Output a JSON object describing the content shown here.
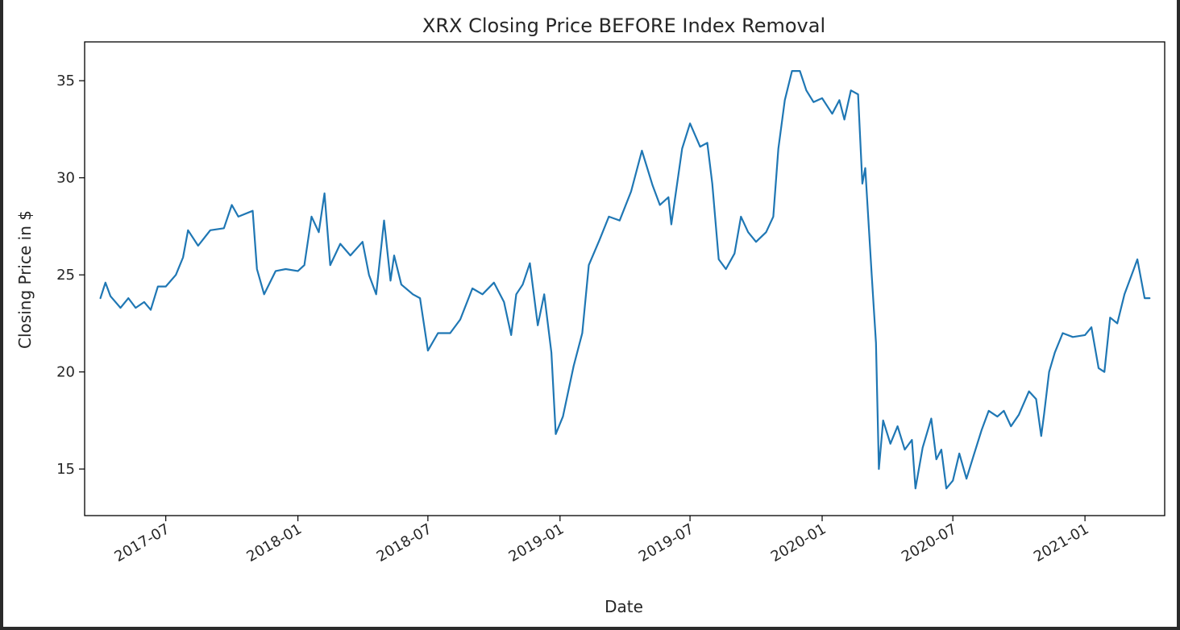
{
  "chart_data": {
    "type": "line",
    "title": "XRX Closing Price BEFORE Index Removal",
    "xlabel": "Date",
    "ylabel": "Closing Price in $",
    "xlim": [
      "2017-03-10",
      "2021-04-22"
    ],
    "ylim": [
      12.6,
      37.0
    ],
    "yticks": [
      15,
      20,
      25,
      30,
      35
    ],
    "xticks": [
      {
        "date": "2017-07-01",
        "label": "2017-07"
      },
      {
        "date": "2018-01-01",
        "label": "2018-01"
      },
      {
        "date": "2018-07-01",
        "label": "2018-07"
      },
      {
        "date": "2019-01-01",
        "label": "2019-01"
      },
      {
        "date": "2019-07-01",
        "label": "2019-07"
      },
      {
        "date": "2020-01-01",
        "label": "2020-01"
      },
      {
        "date": "2020-07-01",
        "label": "2020-07"
      },
      {
        "date": "2021-01-01",
        "label": "2021-01"
      }
    ],
    "grid": false,
    "color": "#1f77b4",
    "series": [
      {
        "name": "",
        "points": [
          [
            "2017-04-01",
            23.8
          ],
          [
            "2017-04-08",
            24.6
          ],
          [
            "2017-04-15",
            23.9
          ],
          [
            "2017-04-29",
            23.3
          ],
          [
            "2017-05-10",
            23.8
          ],
          [
            "2017-05-20",
            23.3
          ],
          [
            "2017-06-01",
            23.6
          ],
          [
            "2017-06-10",
            23.2
          ],
          [
            "2017-06-20",
            24.4
          ],
          [
            "2017-07-01",
            24.4
          ],
          [
            "2017-07-15",
            25.0
          ],
          [
            "2017-07-25",
            25.9
          ],
          [
            "2017-08-01",
            27.3
          ],
          [
            "2017-08-15",
            26.5
          ],
          [
            "2017-09-01",
            27.3
          ],
          [
            "2017-09-20",
            27.4
          ],
          [
            "2017-10-01",
            28.6
          ],
          [
            "2017-10-10",
            28.0
          ],
          [
            "2017-10-30",
            28.3
          ],
          [
            "2017-11-05",
            25.3
          ],
          [
            "2017-11-15",
            24.0
          ],
          [
            "2017-12-01",
            25.2
          ],
          [
            "2017-12-15",
            25.3
          ],
          [
            "2018-01-01",
            25.2
          ],
          [
            "2018-01-10",
            25.5
          ],
          [
            "2018-01-20",
            28.0
          ],
          [
            "2018-01-30",
            27.2
          ],
          [
            "2018-02-07",
            29.2
          ],
          [
            "2018-02-15",
            25.5
          ],
          [
            "2018-03-01",
            26.6
          ],
          [
            "2018-03-15",
            26.0
          ],
          [
            "2018-04-01",
            26.7
          ],
          [
            "2018-04-10",
            25.0
          ],
          [
            "2018-04-20",
            24.0
          ],
          [
            "2018-05-01",
            27.8
          ],
          [
            "2018-05-10",
            24.7
          ],
          [
            "2018-05-15",
            26.0
          ],
          [
            "2018-05-25",
            24.5
          ],
          [
            "2018-06-10",
            24.0
          ],
          [
            "2018-06-20",
            23.8
          ],
          [
            "2018-07-01",
            21.1
          ],
          [
            "2018-07-15",
            22.0
          ],
          [
            "2018-08-01",
            22.0
          ],
          [
            "2018-08-15",
            22.7
          ],
          [
            "2018-09-01",
            24.3
          ],
          [
            "2018-09-15",
            24.0
          ],
          [
            "2018-10-01",
            24.6
          ],
          [
            "2018-10-15",
            23.6
          ],
          [
            "2018-10-25",
            21.9
          ],
          [
            "2018-11-01",
            24.0
          ],
          [
            "2018-11-10",
            24.5
          ],
          [
            "2018-11-20",
            25.6
          ],
          [
            "2018-12-01",
            22.4
          ],
          [
            "2018-12-10",
            24.0
          ],
          [
            "2018-12-20",
            21.0
          ],
          [
            "2018-12-26",
            16.8
          ],
          [
            "2019-01-05",
            17.7
          ],
          [
            "2019-01-20",
            20.3
          ],
          [
            "2019-02-01",
            22.0
          ],
          [
            "2019-02-10",
            25.5
          ],
          [
            "2019-02-25",
            26.8
          ],
          [
            "2019-03-10",
            28.0
          ],
          [
            "2019-03-25",
            27.8
          ],
          [
            "2019-04-10",
            29.3
          ],
          [
            "2019-04-25",
            31.4
          ],
          [
            "2019-05-10",
            29.6
          ],
          [
            "2019-05-20",
            28.6
          ],
          [
            "2019-06-01",
            29.0
          ],
          [
            "2019-06-05",
            27.6
          ],
          [
            "2019-06-20",
            31.5
          ],
          [
            "2019-07-01",
            32.8
          ],
          [
            "2019-07-15",
            31.6
          ],
          [
            "2019-07-25",
            31.8
          ],
          [
            "2019-08-01",
            29.7
          ],
          [
            "2019-08-10",
            25.8
          ],
          [
            "2019-08-20",
            25.3
          ],
          [
            "2019-09-01",
            26.1
          ],
          [
            "2019-09-10",
            28.0
          ],
          [
            "2019-09-20",
            27.2
          ],
          [
            "2019-10-01",
            26.7
          ],
          [
            "2019-10-15",
            27.2
          ],
          [
            "2019-10-25",
            28.0
          ],
          [
            "2019-11-01",
            31.5
          ],
          [
            "2019-11-10",
            34.0
          ],
          [
            "2019-11-20",
            35.5
          ],
          [
            "2019-12-01",
            35.5
          ],
          [
            "2019-12-10",
            34.5
          ],
          [
            "2019-12-20",
            33.9
          ],
          [
            "2020-01-01",
            34.1
          ],
          [
            "2020-01-15",
            33.3
          ],
          [
            "2020-01-25",
            34.0
          ],
          [
            "2020-02-01",
            33.0
          ],
          [
            "2020-02-10",
            34.5
          ],
          [
            "2020-02-20",
            34.3
          ],
          [
            "2020-02-26",
            29.7
          ],
          [
            "2020-03-01",
            30.5
          ],
          [
            "2020-03-10",
            25.0
          ],
          [
            "2020-03-16",
            21.5
          ],
          [
            "2020-03-20",
            15.0
          ],
          [
            "2020-03-26",
            17.5
          ],
          [
            "2020-04-05",
            16.3
          ],
          [
            "2020-04-15",
            17.2
          ],
          [
            "2020-04-25",
            16.0
          ],
          [
            "2020-05-05",
            16.5
          ],
          [
            "2020-05-10",
            14.0
          ],
          [
            "2020-05-20",
            16.1
          ],
          [
            "2020-06-01",
            17.6
          ],
          [
            "2020-06-08",
            15.5
          ],
          [
            "2020-06-15",
            16.0
          ],
          [
            "2020-06-22",
            14.0
          ],
          [
            "2020-07-01",
            14.4
          ],
          [
            "2020-07-10",
            15.8
          ],
          [
            "2020-07-20",
            14.5
          ],
          [
            "2020-07-30",
            15.7
          ],
          [
            "2020-08-10",
            17.0
          ],
          [
            "2020-08-20",
            18.0
          ],
          [
            "2020-09-01",
            17.7
          ],
          [
            "2020-09-10",
            18.0
          ],
          [
            "2020-09-20",
            17.2
          ],
          [
            "2020-10-01",
            17.8
          ],
          [
            "2020-10-15",
            19.0
          ],
          [
            "2020-10-25",
            18.6
          ],
          [
            "2020-11-01",
            16.7
          ],
          [
            "2020-11-05",
            17.8
          ],
          [
            "2020-11-12",
            20.0
          ],
          [
            "2020-11-20",
            21.0
          ],
          [
            "2020-12-01",
            22.0
          ],
          [
            "2020-12-15",
            21.8
          ],
          [
            "2021-01-01",
            21.9
          ],
          [
            "2021-01-10",
            22.3
          ],
          [
            "2021-01-20",
            20.2
          ],
          [
            "2021-01-28",
            20.0
          ],
          [
            "2021-02-05",
            22.8
          ],
          [
            "2021-02-15",
            22.5
          ],
          [
            "2021-02-25",
            24.0
          ],
          [
            "2021-03-10",
            25.3
          ],
          [
            "2021-03-15",
            25.8
          ],
          [
            "2021-03-25",
            23.8
          ],
          [
            "2021-04-01",
            23.8
          ]
        ]
      }
    ]
  }
}
